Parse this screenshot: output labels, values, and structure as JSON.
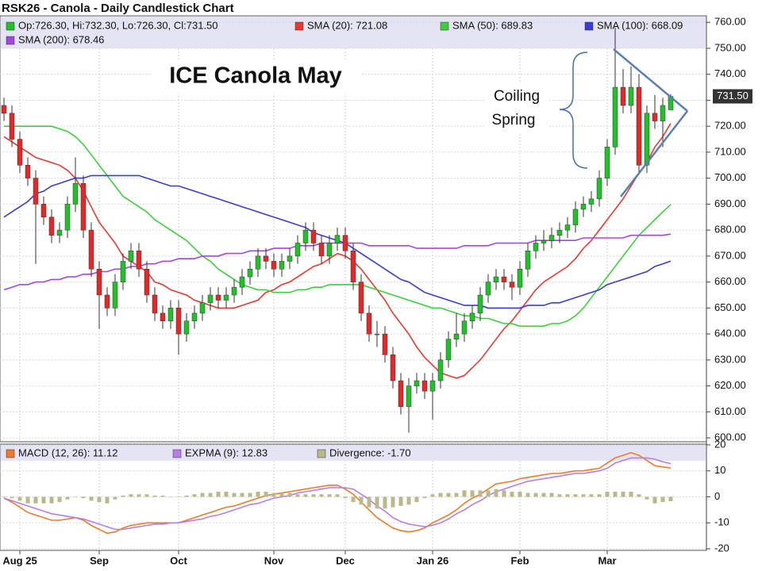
{
  "chart_data": [
    {
      "type": "candlestick",
      "title": "RSK26 - Canola - Daily Candlestick Chart",
      "ohlc_label": "Op:726.30, Hi:732.30, Lo:726.30, Cl:731.50",
      "last_price_label": "731.50",
      "annotations": [
        "ICE Canola May",
        "Coiling",
        "Spring"
      ],
      "up_color": "#22c02a",
      "down_color": "#e02a2a",
      "grid": true,
      "categories": [
        null,
        null,
        "Aug 25",
        null,
        null,
        null,
        null,
        null,
        null,
        null,
        null,
        null,
        "Sep",
        null,
        null,
        null,
        null,
        null,
        null,
        null,
        null,
        null,
        "Oct",
        null,
        null,
        null,
        null,
        null,
        null,
        null,
        null,
        null,
        null,
        null,
        "Nov",
        null,
        null,
        null,
        null,
        null,
        null,
        null,
        null,
        "Dec",
        null,
        null,
        null,
        null,
        null,
        null,
        null,
        null,
        null,
        null,
        "Jan 26",
        null,
        null,
        null,
        null,
        null,
        null,
        null,
        null,
        null,
        null,
        "Feb",
        null,
        null,
        null,
        null,
        null,
        null,
        null,
        null,
        null,
        null,
        "Mar",
        null,
        null,
        null,
        null,
        null,
        null,
        null,
        null
      ],
      "open": [
        728,
        725,
        715,
        705,
        700,
        690,
        685,
        678,
        680,
        690,
        698,
        680,
        665,
        655,
        650,
        660,
        668,
        672,
        665,
        655,
        648,
        645,
        650,
        640,
        645,
        648,
        652,
        655,
        653,
        655,
        658,
        662,
        665,
        670,
        668,
        665,
        668,
        670,
        675,
        680,
        675,
        670,
        675,
        678,
        672,
        660,
        648,
        640,
        640,
        632,
        622,
        612,
        620,
        622,
        618,
        622,
        630,
        638,
        640,
        645,
        648,
        655,
        660,
        662,
        660,
        658,
        665,
        672,
        675,
        676,
        678,
        680,
        682,
        688,
        690,
        692,
        700,
        712,
        735,
        728,
        735,
        705,
        725,
        722,
        726.3
      ],
      "high": [
        731,
        728,
        718,
        708,
        703,
        693,
        688,
        683,
        693,
        708,
        701,
        683,
        668,
        658,
        663,
        671,
        675,
        675,
        668,
        658,
        651,
        653,
        653,
        648,
        651,
        655,
        658,
        658,
        658,
        661,
        665,
        668,
        673,
        673,
        671,
        671,
        673,
        678,
        683,
        683,
        678,
        678,
        681,
        681,
        675,
        663,
        651,
        645,
        643,
        635,
        625,
        623,
        625,
        625,
        625,
        633,
        641,
        648,
        648,
        651,
        658,
        663,
        665,
        665,
        663,
        668,
        675,
        678,
        680,
        681,
        683,
        685,
        691,
        693,
        695,
        703,
        715,
        758,
        742,
        743,
        740,
        728,
        732,
        731,
        732.3
      ],
      "low": [
        722,
        712,
        702,
        697,
        667,
        682,
        675,
        675,
        677,
        687,
        677,
        662,
        642,
        647,
        647,
        657,
        665,
        662,
        652,
        645,
        642,
        642,
        632,
        637,
        642,
        645,
        649,
        650,
        650,
        652,
        655,
        659,
        662,
        665,
        662,
        662,
        665,
        667,
        672,
        672,
        667,
        667,
        672,
        669,
        657,
        645,
        637,
        635,
        629,
        619,
        609,
        602,
        617,
        615,
        607,
        619,
        627,
        635,
        637,
        642,
        645,
        652,
        657,
        657,
        653,
        655,
        662,
        669,
        672,
        673,
        675,
        677,
        679,
        685,
        687,
        689,
        697,
        709,
        725,
        725,
        702,
        702,
        719,
        712,
        726.3
      ],
      "close": [
        725,
        715,
        705,
        700,
        690,
        685,
        678,
        680,
        690,
        698,
        680,
        665,
        655,
        650,
        660,
        668,
        672,
        665,
        655,
        648,
        645,
        650,
        640,
        645,
        648,
        652,
        655,
        653,
        655,
        658,
        662,
        665,
        670,
        668,
        665,
        668,
        670,
        675,
        680,
        675,
        670,
        675,
        678,
        672,
        660,
        648,
        640,
        640,
        632,
        622,
        612,
        620,
        622,
        618,
        622,
        630,
        638,
        640,
        645,
        648,
        655,
        660,
        662,
        660,
        658,
        665,
        672,
        675,
        676,
        678,
        680,
        682,
        688,
        690,
        692,
        700,
        712,
        735,
        728,
        735,
        705,
        725,
        722,
        728,
        731.5
      ],
      "series": [
        {
          "name": "SMA (20): 721.08",
          "color": "#e8392f",
          "values": [
            716,
            714,
            712,
            710,
            708,
            707,
            706,
            705,
            703,
            700,
            695,
            689,
            683,
            679,
            675,
            670,
            668,
            666,
            664,
            660,
            659,
            657,
            656,
            655,
            653,
            652,
            651,
            650,
            650,
            650,
            651,
            652,
            653,
            656,
            657,
            659,
            660,
            662,
            664,
            666,
            667,
            669,
            671,
            670,
            668,
            665,
            661,
            657,
            653,
            648,
            644,
            640,
            635,
            631,
            628,
            625,
            624,
            623,
            624,
            627,
            630,
            634,
            638,
            642,
            645,
            649,
            653,
            657,
            660,
            662,
            664,
            666,
            669,
            673,
            676,
            680,
            684,
            688,
            692,
            697,
            702,
            706,
            712,
            716,
            721.08
          ]
        },
        {
          "name": "SMA (50): 689.83",
          "color": "#3ccf3c",
          "values": [
            720,
            720,
            720,
            720,
            720,
            720,
            720,
            719,
            718,
            716,
            713,
            709,
            705,
            701,
            697,
            693,
            691,
            689,
            687,
            684,
            682,
            680,
            678,
            676,
            673,
            670,
            668,
            665,
            663,
            661,
            659,
            658,
            657,
            657,
            656,
            656,
            656,
            657,
            657,
            658,
            658,
            659,
            659,
            659,
            659,
            659,
            658,
            657,
            656,
            655,
            654,
            653,
            652,
            651,
            650,
            650,
            649,
            648,
            647,
            647,
            646,
            646,
            645,
            644,
            644,
            643,
            643,
            643,
            643,
            644,
            644,
            645,
            647,
            650,
            654,
            658,
            662,
            666,
            670,
            674,
            678,
            681,
            684,
            687,
            689.83
          ]
        },
        {
          "name": "SMA (100): 668.09",
          "color": "#3b3bd6",
          "values": [
            685,
            687,
            689,
            691,
            694,
            695,
            697,
            698,
            699,
            700,
            700,
            701,
            701,
            701,
            701,
            701,
            701,
            701,
            700,
            699,
            698,
            697,
            697,
            696,
            695,
            694,
            693,
            692,
            691,
            690,
            689,
            688,
            687,
            686,
            685,
            684,
            683,
            682,
            681,
            679,
            678,
            677,
            676,
            675,
            673,
            671,
            669,
            667,
            665,
            663,
            661,
            660,
            658,
            656,
            655,
            654,
            653,
            652,
            651,
            651,
            651,
            650,
            650,
            650,
            650,
            650,
            651,
            651,
            651,
            652,
            652,
            653,
            654,
            655,
            656,
            657,
            659,
            660,
            661,
            662,
            663,
            664,
            666,
            667,
            668.09
          ]
        },
        {
          "name": "SMA (200): 678.46",
          "color": "#a445e0",
          "values": [
            657,
            658,
            659,
            659,
            660,
            660,
            661,
            661,
            662,
            662,
            663,
            663,
            664,
            664,
            665,
            665,
            666,
            666,
            667,
            667,
            668,
            668,
            669,
            669,
            669,
            670,
            670,
            670,
            671,
            671,
            671,
            672,
            672,
            672,
            673,
            673,
            673,
            674,
            674,
            674,
            675,
            675,
            675,
            675,
            675,
            675,
            674,
            674,
            674,
            674,
            674,
            674,
            673,
            673,
            673,
            673,
            673,
            673,
            674,
            674,
            674,
            674,
            675,
            675,
            675,
            675,
            675,
            676,
            676,
            676,
            676,
            676,
            676,
            677,
            677,
            677,
            677,
            677,
            677,
            678,
            678,
            678,
            678,
            678,
            678.46
          ]
        }
      ],
      "ylim": [
        598.5,
        762.5
      ],
      "yticks": [
        {
          "value": 600,
          "label": "600.00"
        },
        {
          "value": 610,
          "label": "610.00"
        },
        {
          "value": 620,
          "label": "620.00"
        },
        {
          "value": 630,
          "label": "630.00"
        },
        {
          "value": 640,
          "label": "640.00"
        },
        {
          "value": 650,
          "label": "650.00"
        },
        {
          "value": 660,
          "label": "660.00"
        },
        {
          "value": 670,
          "label": "670.00"
        },
        {
          "value": 680,
          "label": "680.00"
        },
        {
          "value": 690,
          "label": "690.00"
        },
        {
          "value": 700,
          "label": "700.00"
        },
        {
          "value": 710,
          "label": "710.00"
        },
        {
          "value": 720,
          "label": "720.00"
        },
        {
          "value": 730,
          "label": "730.00"
        },
        {
          "value": 740,
          "label": "740.00"
        },
        {
          "value": 750,
          "label": "750.00"
        },
        {
          "value": 760,
          "label": "760.00"
        }
      ]
    },
    {
      "type": "line",
      "grid": true,
      "series": [
        {
          "name": "MACD (12, 26): 11.12",
          "color": "#f07a28",
          "values": [
            -0.5,
            -2,
            -4,
            -6,
            -7,
            -8,
            -9,
            -9,
            -8.5,
            -8,
            -9,
            -11,
            -12.5,
            -14,
            -13.5,
            -12,
            -11,
            -10.5,
            -10,
            -10,
            -10,
            -10,
            -10,
            -9,
            -8,
            -7,
            -6,
            -5,
            -4,
            -3.5,
            -2.5,
            -1.5,
            -0.5,
            0.5,
            1,
            1.5,
            2,
            2.5,
            3,
            3.5,
            4,
            4.5,
            4.5,
            3,
            1,
            -2,
            -5,
            -8,
            -10,
            -12,
            -13,
            -13.5,
            -13,
            -12,
            -10,
            -8.5,
            -7,
            -5,
            -2.5,
            -0.5,
            1,
            3,
            5,
            5.5,
            6,
            7,
            7.5,
            8,
            8.5,
            9,
            9,
            9.5,
            10,
            10,
            10.5,
            11,
            13,
            15,
            16,
            17,
            16,
            14,
            12,
            11.5,
            11.12
          ]
        },
        {
          "name": "EXPMA (9): 12.83",
          "color": "#b77ee8",
          "values": [
            -0.5,
            -1.5,
            -2.5,
            -3.5,
            -4.5,
            -5.5,
            -6.5,
            -7,
            -7.5,
            -8,
            -8.5,
            -9.5,
            -10.5,
            -11.5,
            -12.5,
            -12.5,
            -12,
            -11.5,
            -11,
            -10.5,
            -10.5,
            -10,
            -10,
            -9.5,
            -9,
            -8.5,
            -7.5,
            -7,
            -6,
            -5,
            -4,
            -3,
            -2.5,
            -1.5,
            -0.5,
            0,
            0.5,
            1.5,
            2,
            2.5,
            3,
            3.5,
            3.5,
            3.5,
            3,
            1,
            -1,
            -3.5,
            -5.5,
            -8,
            -9.5,
            -10.5,
            -11,
            -11.5,
            -11,
            -10,
            -8.5,
            -6.5,
            -5,
            -3,
            -1.5,
            0.5,
            2,
            3,
            4,
            5,
            6,
            6.5,
            7,
            7.5,
            8,
            8.5,
            9,
            9,
            9.5,
            10,
            11,
            13,
            14,
            15,
            15,
            15,
            14.5,
            13.5,
            12.83
          ]
        },
        {
          "name": "Divergence: -1.70",
          "color": "#b9b98c",
          "type": "bar",
          "values": [
            0,
            -0.5,
            -1.5,
            -2.5,
            -2.5,
            -2.5,
            -2.5,
            -2,
            -1,
            0,
            -0.5,
            -1.5,
            -2,
            -2.5,
            -1,
            0.5,
            1,
            1,
            1,
            0.5,
            0.5,
            0,
            0,
            0.5,
            1,
            1.5,
            1.5,
            2,
            2,
            1.5,
            1.5,
            1.5,
            2,
            2,
            1.5,
            1.5,
            1.5,
            1,
            1,
            1,
            1,
            1,
            1,
            -0.5,
            -2,
            -3,
            -4,
            -4.5,
            -4.5,
            -4,
            -3.5,
            -3,
            -2,
            -0.5,
            1,
            1.5,
            1.5,
            1.5,
            2.5,
            2.5,
            2.5,
            2.5,
            3,
            2.5,
            2,
            2,
            1.5,
            1.5,
            1.5,
            1.5,
            1,
            1,
            1,
            1,
            1,
            1,
            2,
            2,
            2,
            2,
            1,
            -1,
            -2.5,
            -2,
            -1.7
          ]
        }
      ],
      "ylim": [
        -20.6,
        20.3
      ],
      "yticks": [
        -20,
        -10,
        0,
        10,
        20
      ]
    }
  ]
}
